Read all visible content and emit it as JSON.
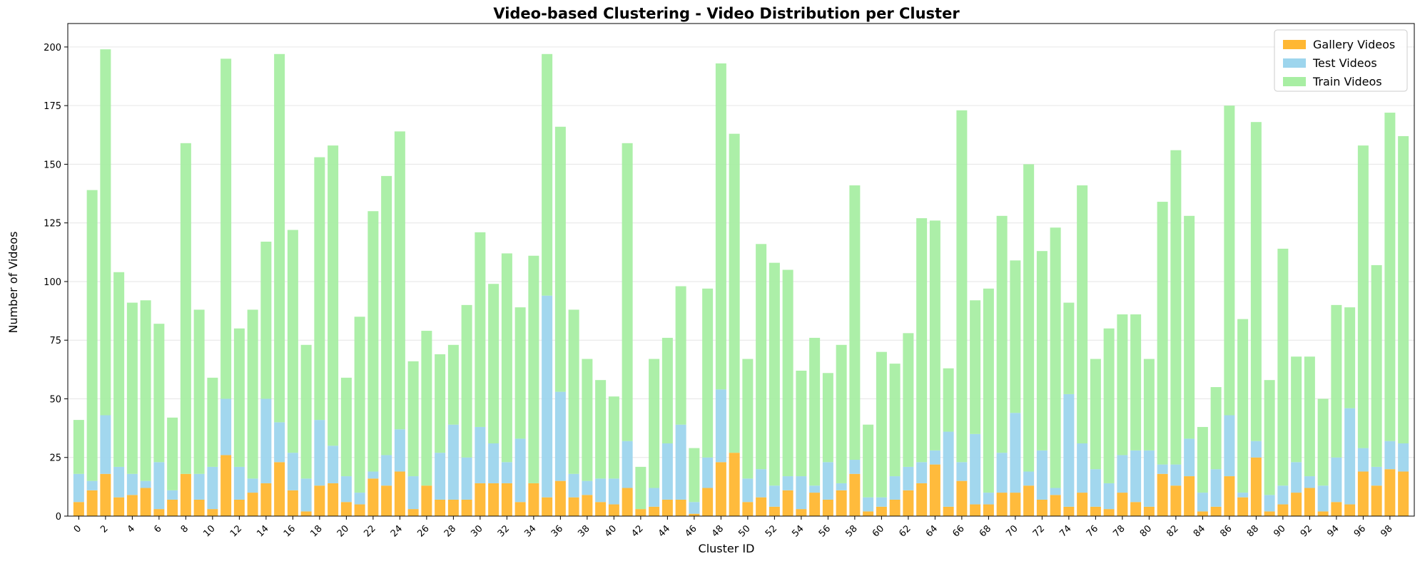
{
  "chart_data": {
    "type": "bar",
    "stacked": true,
    "title": "Video-based Clustering - Video Distribution per Cluster",
    "xlabel": "Cluster ID",
    "ylabel": "Number of Videos",
    "ylim": [
      0,
      210
    ],
    "yticks": [
      0,
      25,
      50,
      75,
      100,
      125,
      150,
      175,
      200
    ],
    "xticks": [
      0,
      2,
      4,
      6,
      8,
      10,
      12,
      14,
      16,
      18,
      20,
      22,
      24,
      26,
      28,
      30,
      32,
      34,
      36,
      38,
      40,
      42,
      44,
      46,
      48,
      50,
      52,
      54,
      56,
      58,
      60,
      62,
      64,
      66,
      68,
      70,
      72,
      74,
      76,
      78,
      80,
      82,
      84,
      86,
      88,
      90,
      92,
      94,
      96,
      98
    ],
    "grid": "y",
    "legend_position": "top-right",
    "categories": [
      0,
      1,
      2,
      3,
      4,
      5,
      6,
      7,
      8,
      9,
      10,
      11,
      12,
      13,
      14,
      15,
      16,
      17,
      18,
      19,
      20,
      21,
      22,
      23,
      24,
      25,
      26,
      27,
      28,
      29,
      30,
      31,
      32,
      33,
      34,
      35,
      36,
      37,
      38,
      39,
      40,
      41,
      42,
      43,
      44,
      45,
      46,
      47,
      48,
      49,
      50,
      51,
      52,
      53,
      54,
      55,
      56,
      57,
      58,
      59,
      60,
      61,
      62,
      63,
      64,
      65,
      66,
      67,
      68,
      69,
      70,
      71,
      72,
      73,
      74,
      75,
      76,
      77,
      78,
      79,
      80,
      81,
      82,
      83,
      84,
      85,
      86,
      87,
      88,
      89,
      90,
      91,
      92,
      93,
      94,
      95,
      96,
      97,
      98,
      99
    ],
    "series": [
      {
        "name": "Gallery Videos",
        "color": "#ffb732",
        "values": [
          6,
          11,
          18,
          8,
          9,
          12,
          3,
          7,
          18,
          7,
          3,
          26,
          7,
          10,
          14,
          23,
          11,
          2,
          13,
          14,
          6,
          5,
          16,
          13,
          19,
          3,
          13,
          7,
          7,
          7,
          14,
          14,
          14,
          6,
          14,
          8,
          15,
          8,
          9,
          6,
          5,
          12,
          3,
          4,
          7,
          7,
          1,
          12,
          23,
          27,
          6,
          8,
          4,
          11,
          3,
          10,
          7,
          11,
          18,
          2,
          4,
          7,
          11,
          14,
          22,
          4,
          15,
          5,
          5,
          10,
          10,
          13,
          7,
          9,
          4,
          10,
          4,
          3,
          10,
          6,
          4,
          18,
          13,
          17,
          2,
          4,
          17,
          8,
          25,
          2,
          5,
          10,
          12,
          2,
          6,
          5,
          19,
          13,
          20,
          19
        ]
      },
      {
        "name": "Test Videos",
        "color": "#9dd5ed",
        "values": [
          12,
          4,
          25,
          13,
          9,
          3,
          20,
          4,
          0,
          11,
          18,
          24,
          14,
          6,
          36,
          17,
          16,
          14,
          28,
          16,
          11,
          5,
          3,
          13,
          18,
          14,
          0,
          20,
          32,
          18,
          24,
          17,
          9,
          27,
          0,
          86,
          38,
          10,
          6,
          10,
          11,
          20,
          0,
          8,
          24,
          32,
          5,
          13,
          31,
          0,
          10,
          12,
          9,
          6,
          14,
          3,
          16,
          3,
          6,
          6,
          4,
          10,
          10,
          9,
          6,
          32,
          8,
          30,
          5,
          17,
          34,
          6,
          21,
          3,
          48,
          21,
          16,
          11,
          16,
          22,
          24,
          4,
          9,
          16,
          8,
          16,
          26,
          2,
          7,
          7,
          8,
          13,
          5,
          11,
          19,
          41,
          10,
          8,
          12,
          12
        ]
      },
      {
        "name": "Train Videos",
        "color": "#a8eea3",
        "values": [
          23,
          124,
          156,
          83,
          73,
          77,
          59,
          31,
          141,
          70,
          38,
          145,
          59,
          72,
          67,
          157,
          95,
          57,
          112,
          128,
          42,
          75,
          111,
          119,
          127,
          49,
          66,
          42,
          34,
          65,
          83,
          68,
          89,
          56,
          97,
          103,
          113,
          70,
          52,
          42,
          35,
          127,
          18,
          55,
          45,
          59,
          23,
          72,
          139,
          136,
          51,
          96,
          95,
          88,
          45,
          63,
          38,
          59,
          117,
          31,
          62,
          48,
          57,
          104,
          98,
          27,
          150,
          57,
          87,
          101,
          65,
          131,
          85,
          111,
          39,
          110,
          47,
          66,
          60,
          58,
          39,
          112,
          134,
          95,
          28,
          35,
          132,
          74,
          136,
          49,
          101,
          45,
          51,
          37,
          65,
          43,
          129,
          86,
          140,
          131
        ]
      }
    ]
  }
}
